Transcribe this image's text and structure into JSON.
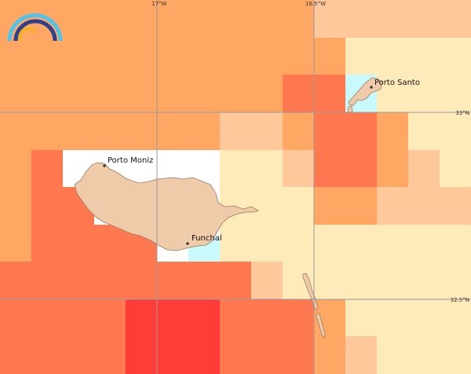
{
  "map": {
    "colors": {
      "c0": "#ffeab9",
      "c1": "#ffc89b",
      "c2": "#ffa763",
      "c3": "#ff7850",
      "c4": "#ff3c37",
      "nodata": "#ffffff",
      "sea_cyan": "#c8fafc",
      "land": "#efcba9",
      "land_stroke": "#9a7b63",
      "grid": "#9a9a9a"
    },
    "grid_labels": {
      "lon_17w": "17°W",
      "lon_16_5w": "16.5°W",
      "lat_33n": "33°N",
      "lat_32_5n": "32.5°N"
    },
    "places": [
      {
        "name": "Porto Santo"
      },
      {
        "name": "Porto Moniz"
      },
      {
        "name": "Funchal"
      }
    ],
    "logo": {
      "name": "rainbow-arc-logo",
      "colors": [
        "#4fc3e8",
        "#2e3f8f",
        "#f2b21b"
      ]
    }
  }
}
